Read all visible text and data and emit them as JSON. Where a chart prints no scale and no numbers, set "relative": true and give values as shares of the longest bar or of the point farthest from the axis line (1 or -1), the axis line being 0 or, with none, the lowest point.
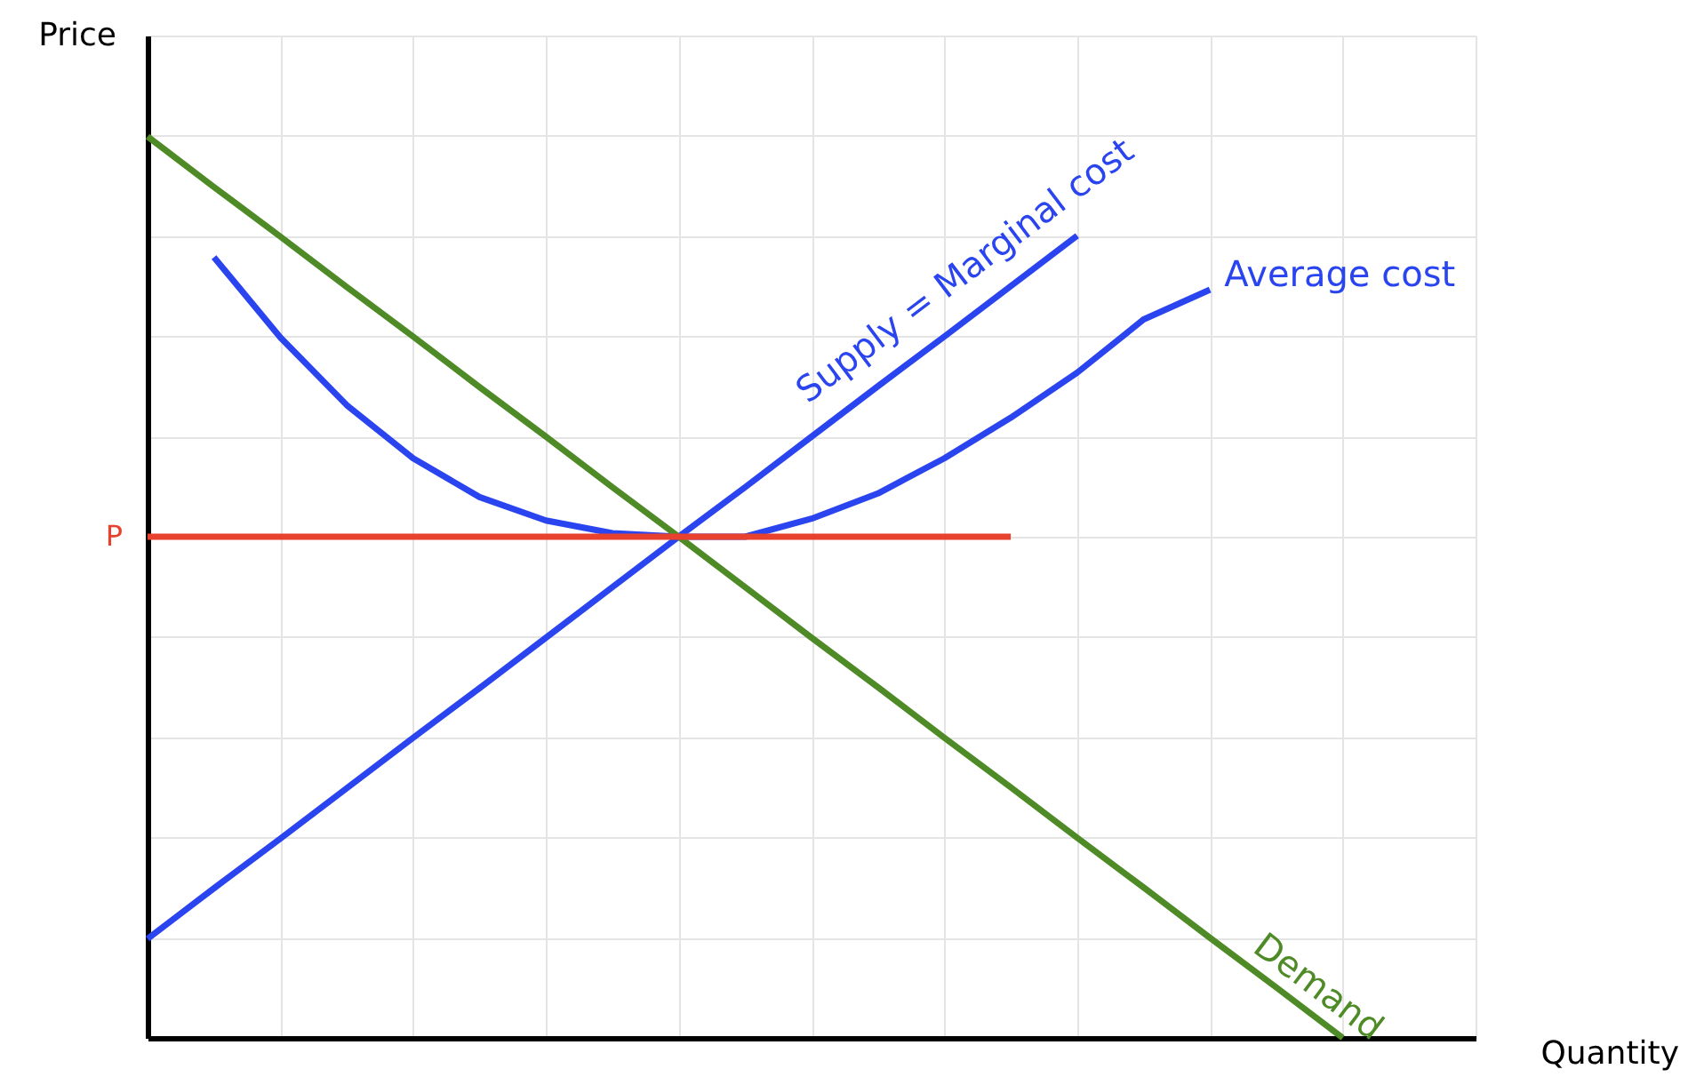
{
  "chart_data": {
    "type": "line",
    "relative": true,
    "xlabel": "Quantity",
    "ylabel": "Price",
    "grid": true,
    "legend": false,
    "line_style": "solid",
    "marker": "none",
    "categories": [
      null,
      null,
      null,
      null,
      null,
      null,
      null,
      null,
      null,
      null,
      null,
      null,
      null,
      null,
      null,
      null,
      null,
      null,
      null,
      null,
      null
    ],
    "series": [
      {
        "name": "Supply = Marginal cost",
        "color": "#2a44f0",
        "values": [
          0.11,
          0.166,
          0.221,
          0.277,
          0.333,
          0.388,
          0.444,
          0.5,
          0.556,
          0.611,
          0.667,
          0.723,
          0.778,
          0.834,
          0.89,
          null,
          null,
          null,
          null,
          null,
          null
        ]
      },
      {
        "name": "Average cost",
        "color": "#2a44f0",
        "values": [
          null,
          0.866,
          0.777,
          0.702,
          0.643,
          0.6,
          0.574,
          0.56,
          0.556,
          0.556,
          0.576,
          0.604,
          0.643,
          0.688,
          0.738,
          0.797,
          0.83,
          null,
          null,
          null,
          null
        ]
      },
      {
        "name": "Demand",
        "color": "#4e8a26",
        "values": [
          1,
          0.944,
          0.889,
          0.833,
          0.778,
          0.722,
          0.667,
          0.611,
          0.556,
          0.5,
          0.444,
          0.389,
          0.333,
          0.278,
          0.222,
          0.167,
          0.111,
          0.056,
          0,
          null,
          null
        ]
      },
      {
        "name": "P",
        "color": "#e8412e",
        "values": [
          0.556,
          0.556,
          0.556,
          0.556,
          0.556,
          0.556,
          0.556,
          0.556,
          0.556,
          0.556,
          0.556,
          0.556,
          0.556,
          0.556,
          null,
          null,
          null,
          null,
          null,
          null,
          null
        ]
      }
    ]
  }
}
